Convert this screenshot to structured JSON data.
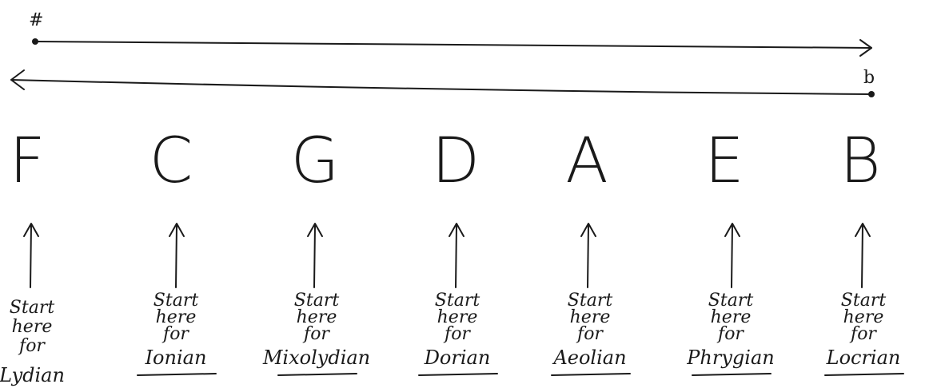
{
  "symbols": {
    "sharp": "#",
    "flat": "b"
  },
  "notes": [
    "F",
    "C",
    "G",
    "D",
    "A",
    "E",
    "B"
  ],
  "labels": [
    {
      "lines": [
        "Start",
        "here",
        "for"
      ],
      "mode": "Lydian"
    },
    {
      "lines": [
        "Start",
        "here",
        "for"
      ],
      "mode": "Ionian"
    },
    {
      "lines": [
        "Start",
        "here",
        "for"
      ],
      "mode": "Mixolydian"
    },
    {
      "lines": [
        "Start",
        "here",
        "for"
      ],
      "mode": "Dorian"
    },
    {
      "lines": [
        "Start",
        "here",
        "for"
      ],
      "mode": "Aeolian"
    },
    {
      "lines": [
        "Start",
        "here",
        "for"
      ],
      "mode": "Phrygian"
    },
    {
      "lines": [
        "Start",
        "here",
        "for"
      ],
      "mode": "Locrian"
    }
  ]
}
